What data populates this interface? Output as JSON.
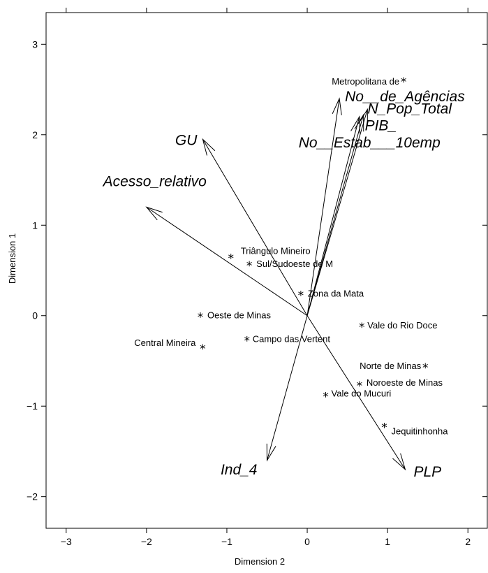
{
  "chart_data": {
    "type": "scatter",
    "subtype": "biplot",
    "xlabel": "Dimension 2",
    "ylabel": "Dimension 1",
    "xlim": [
      -3.25,
      2.25
    ],
    "ylim": [
      -2.35,
      3.35
    ],
    "xticks": [
      -3,
      -2,
      -1,
      0,
      1,
      2
    ],
    "xtick_labels": [
      "−3",
      "−2",
      "−1",
      "0",
      "1",
      "2"
    ],
    "yticks": [
      -2,
      -1,
      0,
      1,
      2,
      3
    ],
    "ytick_labels": [
      "−2",
      "−1",
      "0",
      "1",
      "2",
      "3"
    ],
    "grid": false,
    "marker": "*",
    "observations": [
      {
        "label": "Metropolitana de",
        "x": 1.2,
        "y": 2.6
      },
      {
        "label": "Triângulo Mineiro",
        "x": -0.95,
        "y": 0.65
      },
      {
        "label": "Sul/Sudoeste de M",
        "x": -0.72,
        "y": 0.57
      },
      {
        "label": "Zona da Mata",
        "x": -0.08,
        "y": 0.24
      },
      {
        "label": "Oeste de Minas",
        "x": -1.33,
        "y": 0.0
      },
      {
        "label": "Central Mineira",
        "x": -1.3,
        "y": -0.35
      },
      {
        "label": "Campo das Vertent",
        "x": -0.75,
        "y": -0.26
      },
      {
        "label": "Vale do Rio Doce",
        "x": 0.68,
        "y": -0.11
      },
      {
        "label": "Norte de Minas",
        "x": 1.47,
        "y": -0.56
      },
      {
        "label": "Noroeste de Minas",
        "x": 0.65,
        "y": -0.76
      },
      {
        "label": "Vale do Mucuri",
        "x": 0.23,
        "y": -0.88
      },
      {
        "label": "Jequitinhonha",
        "x": 0.96,
        "y": -1.22
      }
    ],
    "variables": [
      {
        "label": "No__de_Agências",
        "x": 0.4,
        "y": 2.4
      },
      {
        "label": "N_Pop_Total",
        "x": 0.75,
        "y": 2.28
      },
      {
        "label": "PIB_",
        "x": 0.7,
        "y": 2.22
      },
      {
        "label": "No__Estab___10emp",
        "x": 0.65,
        "y": 2.2
      },
      {
        "label": "GU",
        "x": -1.3,
        "y": 1.95
      },
      {
        "label": "Acesso_relativo",
        "x": -2.0,
        "y": 1.2
      },
      {
        "label": "Ind_4",
        "x": -0.5,
        "y": -1.6
      },
      {
        "label": "PLP",
        "x": 1.22,
        "y": -1.7
      }
    ]
  }
}
